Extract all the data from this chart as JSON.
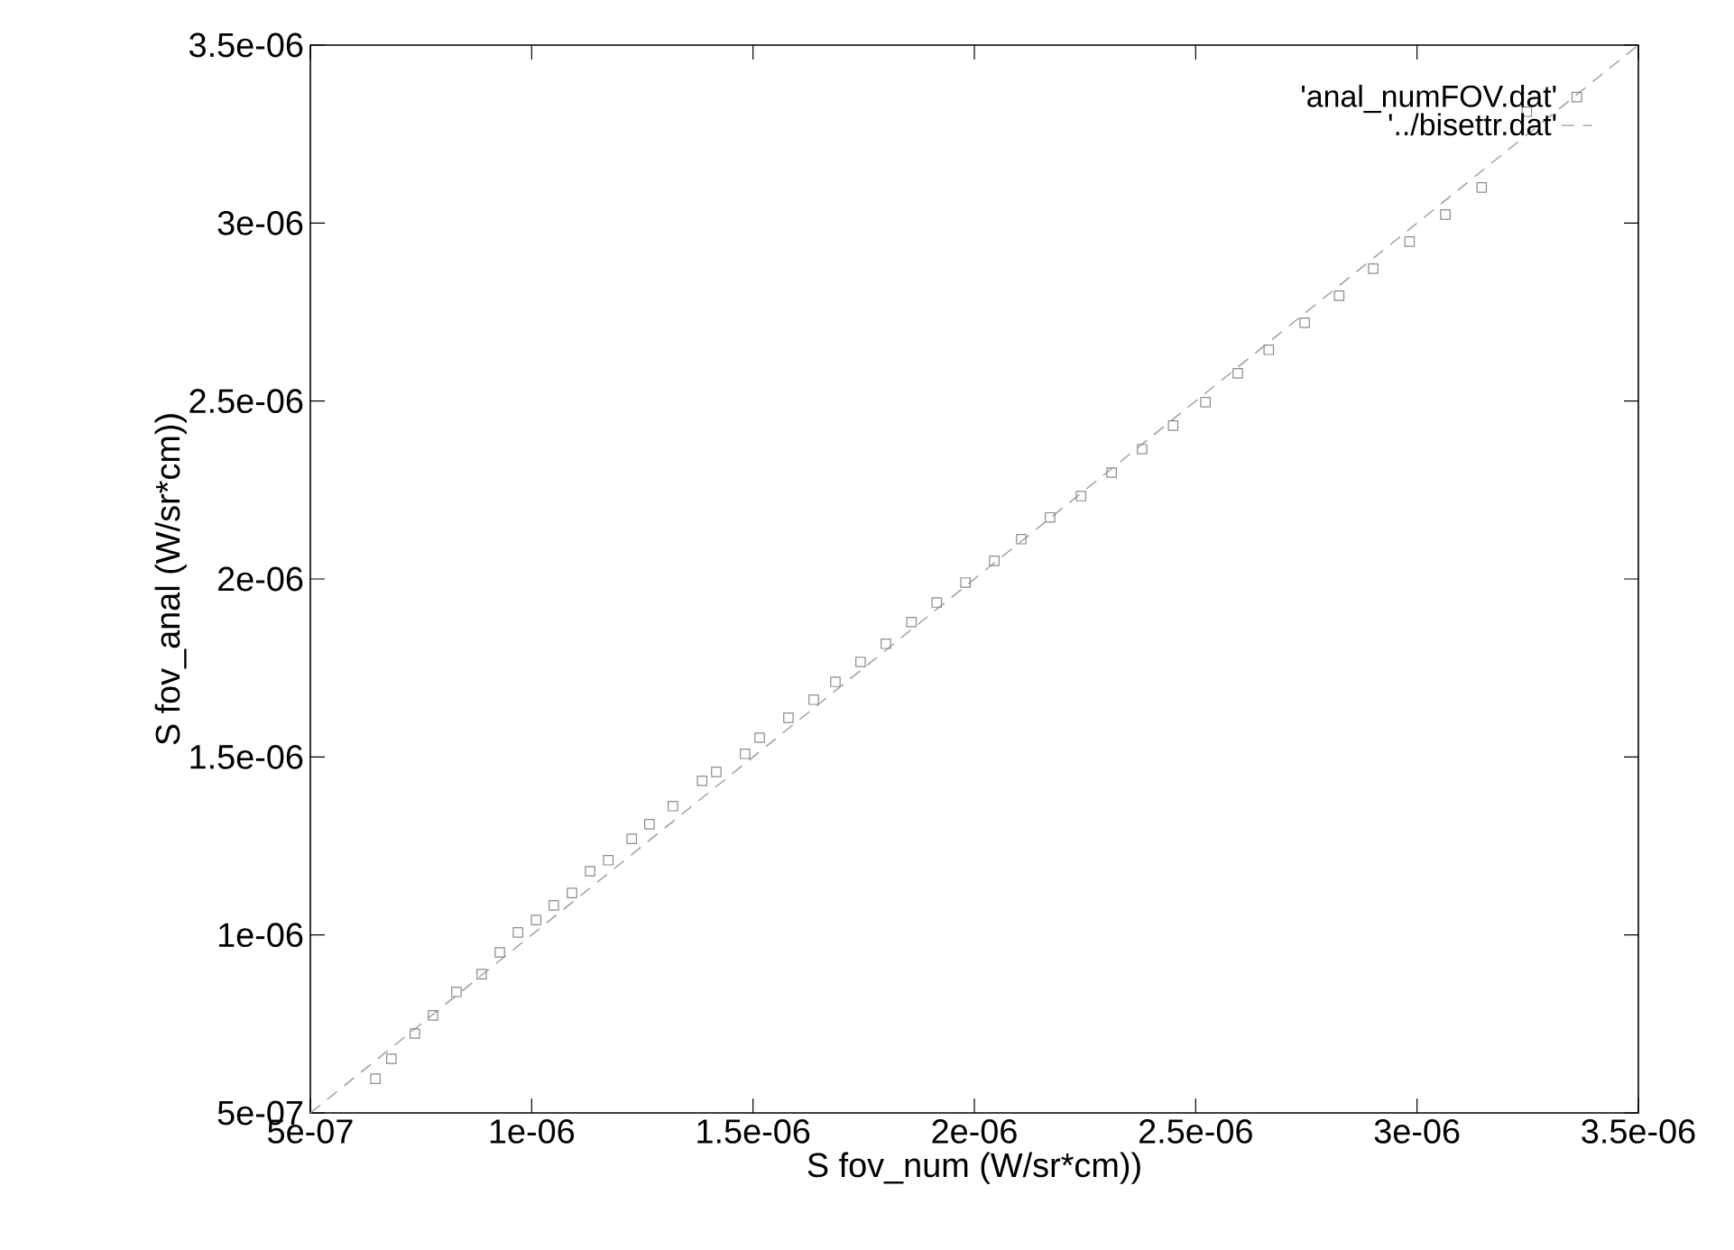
{
  "chart_data": {
    "type": "scatter",
    "xlabel": "S fov_num (W/sr*cm))",
    "ylabel": "S fov_anal (W/sr*cm))",
    "xlim": [
      5e-07,
      3.5e-06
    ],
    "ylim": [
      5e-07,
      3.5e-06
    ],
    "xticks": [
      {
        "value": 5e-07,
        "label": "5e-07"
      },
      {
        "value": 1e-06,
        "label": "1e-06"
      },
      {
        "value": 1.5e-06,
        "label": "1.5e-06"
      },
      {
        "value": 2e-06,
        "label": "2e-06"
      },
      {
        "value": 2.5e-06,
        "label": "2.5e-06"
      },
      {
        "value": 3e-06,
        "label": "3e-06"
      },
      {
        "value": 3.5e-06,
        "label": "3.5e-06"
      }
    ],
    "yticks": [
      {
        "value": 5e-07,
        "label": "5e-07"
      },
      {
        "value": 1e-06,
        "label": "1e-06"
      },
      {
        "value": 1.5e-06,
        "label": "1.5e-06"
      },
      {
        "value": 2e-06,
        "label": "2e-06"
      },
      {
        "value": 2.5e-06,
        "label": "2.5e-06"
      },
      {
        "value": 3e-06,
        "label": "3e-06"
      },
      {
        "value": 3.5e-06,
        "label": "3.5e-06"
      }
    ],
    "legend": "top right",
    "series": [
      {
        "name": "'anal_numFOV.dat'",
        "color": "#8a8a8a",
        "marker": "square",
        "x": [
          6.47e-07,
          6.83e-07,
          7.36e-07,
          7.77e-07,
          8.3e-07,
          8.87e-07,
          9.28e-07,
          9.69e-07,
          1.01e-06,
          1.05e-06,
          1.091e-06,
          1.132e-06,
          1.173e-06,
          1.226e-06,
          1.266e-06,
          1.319e-06,
          1.385e-06,
          1.417e-06,
          1.482e-06,
          1.515e-06,
          1.58e-06,
          1.637e-06,
          1.686e-06,
          1.743e-06,
          1.8e-06,
          1.858e-06,
          1.915e-06,
          1.98e-06,
          2.045e-06,
          2.106e-06,
          2.171e-06,
          2.241e-06,
          2.31e-06,
          2.379e-06,
          2.449e-06,
          2.522e-06,
          2.595e-06,
          2.665e-06,
          2.746e-06,
          2.824e-06,
          2.901e-06,
          2.983e-06,
          3.064e-06,
          3.146e-06,
          3.248e-06
        ],
        "values": [
          5.96e-07,
          6.52e-07,
          7.23e-07,
          7.74e-07,
          8.4e-07,
          8.9e-07,
          9.51e-07,
          1.007e-06,
          1.042e-06,
          1.083e-06,
          1.118e-06,
          1.179e-06,
          1.21e-06,
          1.27e-06,
          1.311e-06,
          1.362e-06,
          1.433e-06,
          1.458e-06,
          1.509e-06,
          1.554e-06,
          1.61e-06,
          1.661e-06,
          1.711e-06,
          1.767e-06,
          1.818e-06,
          1.879e-06,
          1.934e-06,
          1.99e-06,
          2.051e-06,
          2.112e-06,
          2.173e-06,
          2.233e-06,
          2.299e-06,
          2.365e-06,
          2.431e-06,
          2.497e-06,
          2.578e-06,
          2.644e-06,
          2.72e-06,
          2.796e-06,
          2.872e-06,
          2.948e-06,
          3.024e-06,
          3.1e-06,
          3.313e-06
        ]
      },
      {
        "name": "'../bisettr.dat'",
        "type": "line",
        "color": "#9a9a9a",
        "line_style": "dashed",
        "marker": "none",
        "x": [
          5e-07,
          3.5e-06
        ],
        "values": [
          5e-07,
          3.5e-06
        ]
      }
    ]
  }
}
